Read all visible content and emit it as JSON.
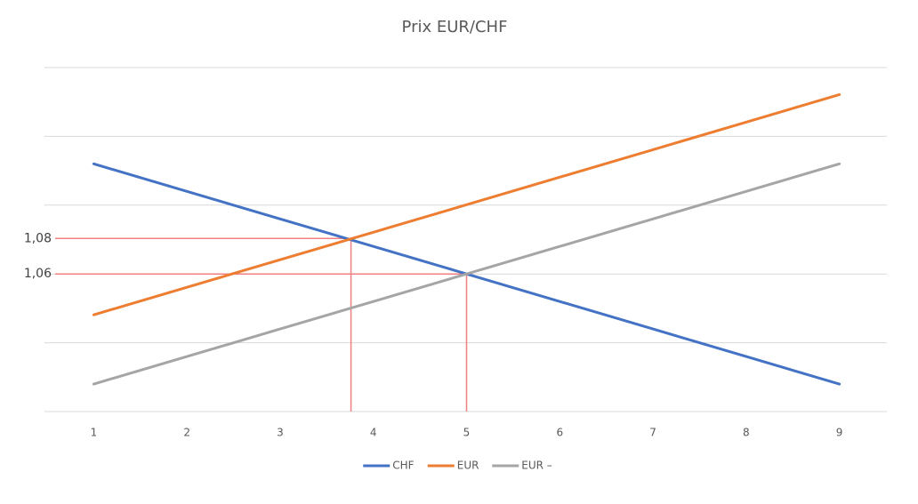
{
  "chart_data": {
    "type": "line",
    "title": "Prix EUR/CHF",
    "x": [
      1,
      2,
      3,
      4,
      5,
      6,
      7,
      8,
      9
    ],
    "xlim": [
      0.5,
      9.5
    ],
    "xticks": [
      1,
      2,
      3,
      4,
      5,
      6,
      7,
      8,
      9
    ],
    "ylim": [
      0.9825,
      1.17625
    ],
    "yticks": [
      {
        "value": 1.06,
        "label": "1,06"
      },
      {
        "value": 1.08,
        "label": "1,08"
      }
    ],
    "ygrid": [
      0.9825,
      1.02125,
      1.06,
      1.09875,
      1.1375,
      1.17625
    ],
    "grid": true,
    "legend": "bottom",
    "series": [
      {
        "name": "CHF",
        "color": "#4472c4",
        "values": [
          1.122,
          1.1065,
          1.091,
          1.0755,
          1.06,
          1.0445,
          1.029,
          1.0135,
          0.998
        ]
      },
      {
        "name": "EUR",
        "color": "#ed7d31",
        "values": [
          1.037,
          1.0525,
          1.068,
          1.0835,
          1.099,
          1.1145,
          1.13,
          1.1455,
          1.161
        ]
      },
      {
        "name": "EUR –",
        "color": "#a5a5a5",
        "values": [
          0.998,
          1.0135,
          1.029,
          1.0445,
          1.06,
          1.0755,
          1.091,
          1.1065,
          1.122
        ]
      }
    ],
    "reference_lines": [
      {
        "x": 3.76,
        "y": 1.08,
        "color": "#f08080"
      },
      {
        "x": 5,
        "y": 1.06,
        "color": "#f08080"
      }
    ]
  }
}
